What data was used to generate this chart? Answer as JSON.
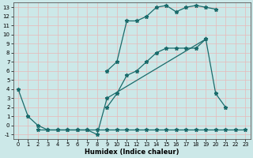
{
  "xlabel": "Humidex (Indice chaleur)",
  "bg_color": "#cce8e8",
  "grid_color": "#e8b8b8",
  "line_color": "#1a6b6b",
  "xlim": [
    -0.5,
    23.5
  ],
  "ylim": [
    -1.5,
    13.5
  ],
  "xticks": [
    0,
    1,
    2,
    3,
    4,
    5,
    6,
    7,
    8,
    9,
    10,
    11,
    12,
    13,
    14,
    15,
    16,
    17,
    18,
    19,
    20,
    21,
    22,
    23
  ],
  "yticks": [
    -1,
    0,
    1,
    2,
    3,
    4,
    5,
    6,
    7,
    8,
    9,
    10,
    11,
    12,
    13
  ],
  "series": [
    {
      "x": [
        9,
        10,
        11,
        12,
        13,
        14,
        15,
        16,
        17,
        18,
        19,
        20,
        21,
        22,
        23
      ],
      "y": [
        6,
        7,
        11.5,
        11.5,
        12,
        13,
        13.2,
        12.5,
        13,
        13.2,
        13,
        12.8,
        null,
        null,
        null
      ]
    },
    {
      "x": [
        9,
        10,
        11,
        12,
        13,
        14,
        15,
        16,
        17,
        18,
        19,
        20,
        21,
        22,
        23
      ],
      "y": [
        2,
        3.5,
        5.5,
        6,
        7,
        8,
        8.5,
        8.5,
        8.5,
        8.5,
        9.5,
        null,
        null,
        null,
        null
      ]
    },
    {
      "x": [
        0,
        1,
        2,
        3,
        4,
        5,
        6,
        7,
        8,
        9,
        19,
        20,
        21,
        22
      ],
      "y": [
        4,
        1,
        0,
        -0.5,
        -0.5,
        -0.5,
        -0.5,
        -0.5,
        -1,
        3,
        9.5,
        3.5,
        2,
        null
      ]
    },
    {
      "x": [
        2,
        3,
        4,
        5,
        6,
        7,
        8,
        9,
        10,
        11,
        12,
        13,
        14,
        15,
        16,
        17,
        18,
        19,
        20,
        21,
        22,
        23
      ],
      "y": [
        -0.5,
        -0.5,
        -0.5,
        -0.5,
        -0.5,
        -0.5,
        -0.5,
        -0.5,
        -0.5,
        -0.5,
        -0.5,
        -0.5,
        -0.5,
        -0.5,
        -0.5,
        -0.5,
        -0.5,
        -0.5,
        -0.5,
        -0.5,
        -0.5,
        -0.5
      ]
    }
  ]
}
